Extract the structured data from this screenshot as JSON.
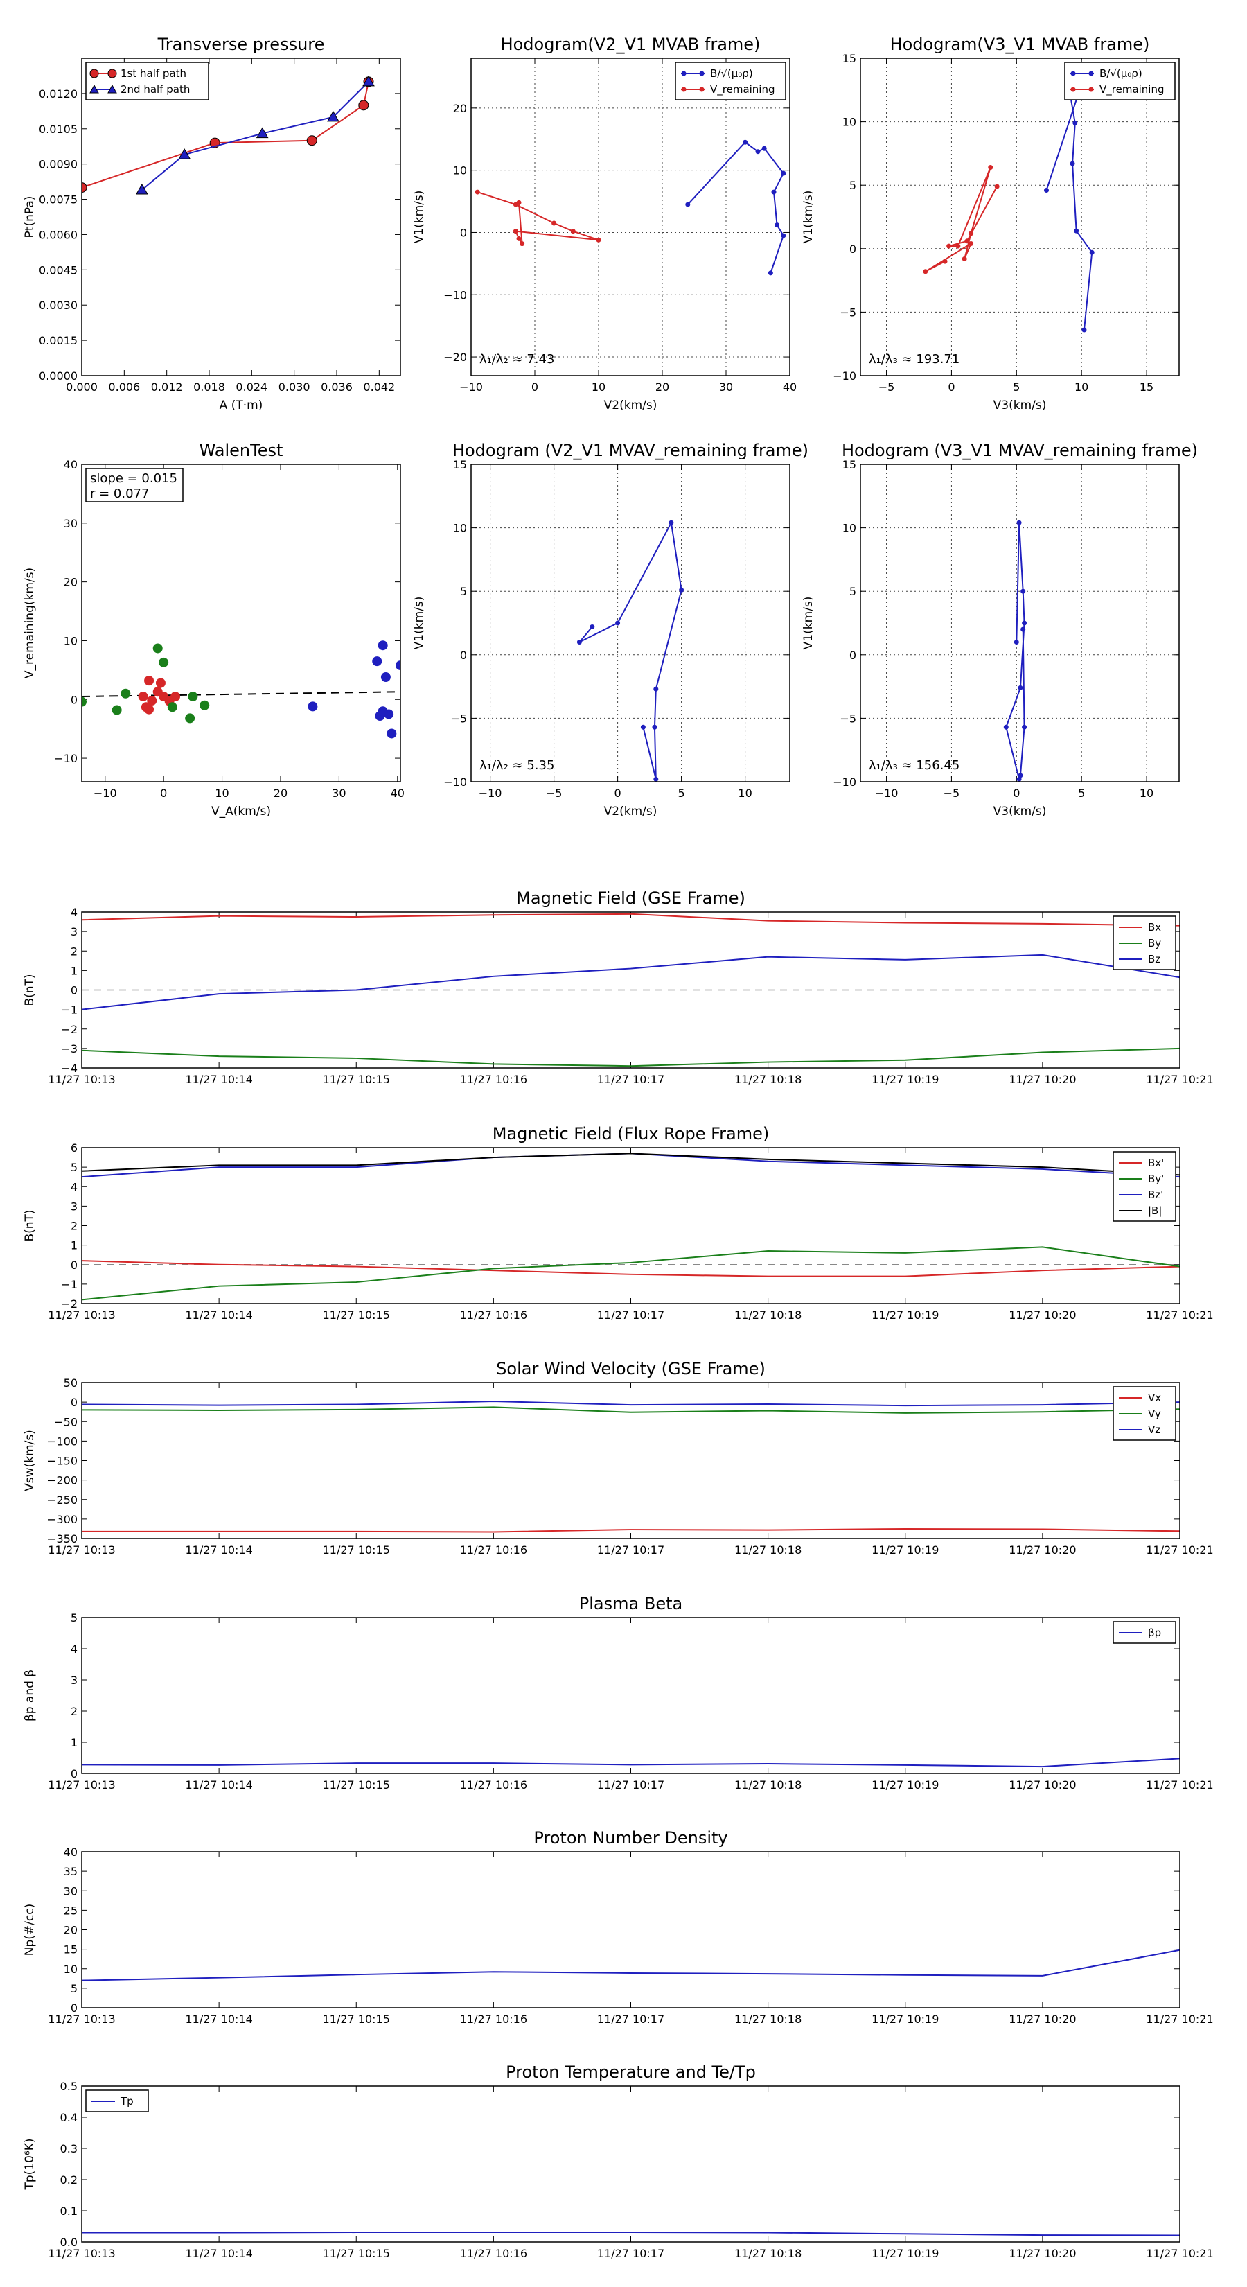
{
  "chart_data": [
    {
      "id": "tp",
      "type": "line",
      "title": "Transverse pressure",
      "xlabel": "A (T·m)",
      "ylabel": "Pt(nPa)",
      "xlim": [
        0,
        0.045
      ],
      "ylim": [
        0,
        0.0135
      ],
      "xticks": [
        0,
        0.006,
        0.012,
        0.018,
        0.024,
        0.03,
        0.036,
        0.042
      ],
      "xtick_labels": [
        "0.000",
        "0.006",
        "0.012",
        "0.018",
        "0.024",
        "0.030",
        "0.036",
        "0.042"
      ],
      "yticks": [
        0,
        0.0015,
        0.003,
        0.0045,
        0.006,
        0.0075,
        0.009,
        0.0105,
        0.012
      ],
      "ytick_labels": [
        "0.0000",
        "0.0015",
        "0.0030",
        "0.0045",
        "0.0060",
        "0.0075",
        "0.0090",
        "0.0105",
        "0.0120"
      ],
      "grid": false,
      "legend": "top-left",
      "series": [
        {
          "name": "1st half path",
          "color": "#d62728",
          "marker": "circle",
          "x": [
            0.0,
            0.0188,
            0.0325,
            0.0398,
            0.0405
          ],
          "y": [
            0.008,
            0.0099,
            0.01,
            0.0115,
            0.0125
          ]
        },
        {
          "name": "2nd half path",
          "color": "#1f1fbf",
          "marker": "triangle",
          "x": [
            0.0085,
            0.0145,
            0.0255,
            0.0355,
            0.0405
          ],
          "y": [
            0.0079,
            0.0094,
            0.0103,
            0.011,
            0.0125
          ]
        }
      ]
    },
    {
      "id": "h1",
      "type": "line",
      "title": "Hodogram(V2_V1 MVAB frame)",
      "xlabel": "V2(km/s)",
      "ylabel": "V1(km/s)",
      "xlim": [
        -10,
        40
      ],
      "ylim": [
        -23,
        28
      ],
      "xticks": [
        -10,
        0,
        10,
        20,
        30,
        40
      ],
      "xtick_labels": [
        "−10",
        "0",
        "10",
        "20",
        "30",
        "40"
      ],
      "yticks": [
        -20,
        -10,
        0,
        10,
        20
      ],
      "ytick_labels": [
        "−20",
        "−10",
        "0",
        "10",
        "20"
      ],
      "grid": true,
      "legend": "top-right",
      "annotation": "λ₁/λ₂ ≈ 7.43",
      "series": [
        {
          "name": "B/√(μ₀ρ)",
          "color": "#1f1fbf",
          "x": [
            24,
            33,
            35,
            36,
            39,
            37.5,
            38,
            39,
            37
          ],
          "y": [
            4.5,
            14.5,
            13,
            13.5,
            9.5,
            6.5,
            1.2,
            -0.5,
            -6.5
          ]
        },
        {
          "name": "V_remaining",
          "color": "#d62728",
          "x": [
            -9,
            -3,
            3,
            6,
            10,
            -3,
            -2.5,
            -2,
            -2.5
          ],
          "y": [
            6.5,
            4.5,
            1.5,
            0.2,
            -1.2,
            0.2,
            -1,
            -1.8,
            4.8
          ]
        }
      ]
    },
    {
      "id": "h2",
      "type": "line",
      "title": "Hodogram(V3_V1 MVAB frame)",
      "xlabel": "V3(km/s)",
      "ylabel": "V1(km/s)",
      "xlim": [
        -7,
        17.5
      ],
      "ylim": [
        -10,
        15
      ],
      "xticks": [
        -5,
        0,
        5,
        10,
        15
      ],
      "xtick_labels": [
        "−5",
        "0",
        "5",
        "10",
        "15"
      ],
      "yticks": [
        -10,
        -5,
        0,
        5,
        10,
        15
      ],
      "ytick_labels": [
        "−10",
        "−5",
        "0",
        "5",
        "10",
        "15"
      ],
      "grid": true,
      "legend": "top-right",
      "annotation": "λ₁/λ₃ ≈ 193.71",
      "series": [
        {
          "name": "B/√(μ₀ρ)",
          "color": "#1f1fbf",
          "x": [
            7.3,
            10.5,
            9.0,
            9.0,
            9.5,
            9.3,
            9.6,
            10.8,
            10.2
          ],
          "y": [
            4.6,
            14.5,
            13.7,
            12.9,
            9.9,
            6.7,
            1.4,
            -0.3,
            -6.4
          ]
        },
        {
          "name": "V_remaining",
          "color": "#d62728",
          "x": [
            3.5,
            1.2,
            -0.2,
            0.5,
            3.0,
            1.5,
            1.0,
            1.5,
            -2.0,
            -0.5
          ],
          "y": [
            4.9,
            0.6,
            0.2,
            0.2,
            6.4,
            1.2,
            -0.8,
            0.4,
            -1.8,
            -1.0
          ]
        }
      ]
    },
    {
      "id": "walen",
      "type": "scatter",
      "title": "WalenTest",
      "xlabel": "V_A(km/s)",
      "ylabel": "V_remaining(km/s)",
      "xlim": [
        -14,
        40.5
      ],
      "ylim": [
        -14,
        40
      ],
      "xticks": [
        -10,
        0,
        10,
        20,
        30,
        40
      ],
      "xtick_labels": [
        "−10",
        "0",
        "10",
        "20",
        "30",
        "40"
      ],
      "yticks": [
        -10,
        0,
        10,
        20,
        30,
        40
      ],
      "ytick_labels": [
        "−10",
        "0",
        "10",
        "20",
        "30",
        "40"
      ],
      "grid": false,
      "annotation_lines": [
        "slope = 0.015",
        "r = 0.077"
      ],
      "fit_line": {
        "x": [
          -14,
          40.5
        ],
        "y": [
          0.5,
          1.3
        ]
      },
      "series": [
        {
          "color": "#d62728",
          "x": [
            -3.5,
            -2.5,
            -2,
            -1,
            -0.5,
            0,
            1,
            2,
            -2.5,
            -3
          ],
          "y": [
            0.5,
            3.2,
            -0.2,
            1.3,
            2.8,
            0.5,
            -0.3,
            0.5,
            -1.7,
            -1.3
          ]
        },
        {
          "color": "#1a7f1a",
          "x": [
            -1,
            0,
            5,
            7,
            4.5,
            -6.5,
            -8,
            1.5,
            -14
          ],
          "y": [
            8.7,
            6.3,
            0.5,
            -1,
            -3.2,
            1,
            -1.8,
            -1.3,
            -0.4
          ]
        },
        {
          "color": "#1f1fbf",
          "x": [
            25.5,
            36.5,
            37.5,
            38,
            38.5,
            39,
            40.5,
            37,
            37.5
          ],
          "y": [
            -1.2,
            6.5,
            9.2,
            3.8,
            -2.5,
            -5.8,
            5.8,
            -2.8,
            -2.0
          ]
        }
      ]
    },
    {
      "id": "h3",
      "type": "line",
      "title": "Hodogram (V2_V1 MVAV_remaining frame)",
      "xlabel": "V2(km/s)",
      "ylabel": "V1(km/s)",
      "xlim": [
        -11.5,
        13.5
      ],
      "ylim": [
        -10,
        15
      ],
      "xticks": [
        -10,
        -5,
        0,
        5,
        10
      ],
      "xtick_labels": [
        "−10",
        "−5",
        "0",
        "5",
        "10"
      ],
      "yticks": [
        -10,
        -5,
        0,
        5,
        10,
        15
      ],
      "ytick_labels": [
        "−10",
        "−5",
        "0",
        "5",
        "10",
        "15"
      ],
      "grid": true,
      "annotation": "λ₁/λ₂ ≈ 5.35",
      "series": [
        {
          "color": "#1f1fbf",
          "x": [
            -2,
            -3,
            0,
            4.2,
            5,
            3,
            2.9,
            3,
            2
          ],
          "y": [
            2.2,
            1.0,
            2.5,
            10.4,
            5.1,
            -2.7,
            -5.7,
            -9.8,
            -5.7
          ]
        }
      ]
    },
    {
      "id": "h4",
      "type": "line",
      "title": "Hodogram (V3_V1 MVAV_remaining frame)",
      "xlabel": "V3(km/s)",
      "ylabel": "V1(km/s)",
      "xlim": [
        -12,
        12.5
      ],
      "ylim": [
        -10,
        15
      ],
      "xticks": [
        -10,
        -5,
        0,
        5,
        10
      ],
      "xtick_labels": [
        "−10",
        "−5",
        "0",
        "5",
        "10"
      ],
      "yticks": [
        -10,
        -5,
        0,
        5,
        10,
        15
      ],
      "ytick_labels": [
        "−10",
        "−5",
        "0",
        "5",
        "10",
        "15"
      ],
      "grid": true,
      "annotation": "λ₁/λ₃ ≈ 156.45",
      "series": [
        {
          "color": "#1f1fbf",
          "x": [
            0,
            0.2,
            0.5,
            0.6,
            0.3,
            -0.8,
            0.2,
            0.3,
            0.6,
            0.5
          ],
          "y": [
            1.0,
            10.4,
            5.0,
            2.5,
            -2.6,
            -5.7,
            -9.8,
            -9.5,
            -5.7,
            2.0
          ]
        }
      ]
    },
    {
      "id": "mag_gse",
      "type": "line",
      "title": "Magnetic Field (GSE Frame)",
      "ylabel": "B(nT)",
      "xlim": [
        0,
        8
      ],
      "ylim": [
        -4,
        4
      ],
      "x_categories": [
        "11/27 10:13",
        "11/27 10:14",
        "11/27 10:15",
        "11/27 10:16",
        "11/27 10:17",
        "11/27 10:18",
        "11/27 10:19",
        "11/27 10:20",
        "11/27 10:21"
      ],
      "yticks": [
        -4,
        -3,
        -2,
        -1,
        0,
        1,
        2,
        3,
        4
      ],
      "ytick_labels": [
        "−4",
        "−3",
        "−2",
        "−1",
        "0",
        "1",
        "2",
        "3",
        "4"
      ],
      "zero_line": true,
      "legend": "top-right",
      "series": [
        {
          "name": "Bx",
          "color": "#d62728",
          "x": [
            0,
            1,
            2,
            3,
            4,
            5,
            6,
            7,
            8
          ],
          "y": [
            3.6,
            3.8,
            3.75,
            3.85,
            3.9,
            3.55,
            3.45,
            3.4,
            3.3
          ]
        },
        {
          "name": "By",
          "color": "#1a7f1a",
          "x": [
            0,
            1,
            2,
            3,
            4,
            5,
            6,
            7,
            8
          ],
          "y": [
            -3.1,
            -3.4,
            -3.5,
            -3.8,
            -3.9,
            -3.7,
            -3.6,
            -3.2,
            -3.0
          ]
        },
        {
          "name": "Bz",
          "color": "#1f1fbf",
          "x": [
            0,
            1,
            2,
            3,
            4,
            5,
            6,
            7,
            8
          ],
          "y": [
            -1.0,
            -0.2,
            0.0,
            0.7,
            1.1,
            1.7,
            1.55,
            1.8,
            0.65
          ]
        }
      ]
    },
    {
      "id": "mag_fr",
      "type": "line",
      "title": "Magnetic Field (Flux Rope Frame)",
      "ylabel": "B(nT)",
      "xlim": [
        0,
        8
      ],
      "ylim": [
        -2,
        6
      ],
      "x_categories": [
        "11/27 10:13",
        "11/27 10:14",
        "11/27 10:15",
        "11/27 10:16",
        "11/27 10:17",
        "11/27 10:18",
        "11/27 10:19",
        "11/27 10:20",
        "11/27 10:21"
      ],
      "yticks": [
        -2,
        -1,
        0,
        1,
        2,
        3,
        4,
        5,
        6
      ],
      "ytick_labels": [
        "−2",
        "−1",
        "0",
        "1",
        "2",
        "3",
        "4",
        "5",
        "6"
      ],
      "zero_line": true,
      "legend": "top-right",
      "series": [
        {
          "name": "Bx'",
          "color": "#d62728",
          "x": [
            0,
            1,
            2,
            3,
            4,
            5,
            6,
            7,
            8
          ],
          "y": [
            0.2,
            0.0,
            -0.1,
            -0.3,
            -0.5,
            -0.6,
            -0.6,
            -0.3,
            -0.1
          ]
        },
        {
          "name": "By'",
          "color": "#1a7f1a",
          "x": [
            0,
            1,
            2,
            3,
            4,
            5,
            6,
            7,
            8
          ],
          "y": [
            -1.8,
            -1.1,
            -0.9,
            -0.2,
            0.1,
            0.7,
            0.6,
            0.9,
            -0.1
          ]
        },
        {
          "name": "Bz'",
          "color": "#1f1fbf",
          "x": [
            0,
            1,
            2,
            3,
            4,
            5,
            6,
            7,
            8
          ],
          "y": [
            4.5,
            5.0,
            5.0,
            5.5,
            5.7,
            5.3,
            5.1,
            4.9,
            4.5
          ]
        },
        {
          "name": "|B|",
          "color": "#000000",
          "x": [
            0,
            1,
            2,
            3,
            4,
            5,
            6,
            7,
            8
          ],
          "y": [
            4.8,
            5.1,
            5.1,
            5.5,
            5.7,
            5.4,
            5.2,
            5.0,
            4.6
          ]
        }
      ]
    },
    {
      "id": "vsw",
      "type": "line",
      "title": "Solar Wind Velocity (GSE Frame)",
      "ylabel": "Vsw(km/s)",
      "xlim": [
        0,
        8
      ],
      "ylim": [
        -350,
        50
      ],
      "x_categories": [
        "11/27 10:13",
        "11/27 10:14",
        "11/27 10:15",
        "11/27 10:16",
        "11/27 10:17",
        "11/27 10:18",
        "11/27 10:19",
        "11/27 10:20",
        "11/27 10:21"
      ],
      "yticks": [
        -350,
        -300,
        -250,
        -200,
        -150,
        -100,
        -50,
        0,
        50
      ],
      "ytick_labels": [
        "−350",
        "−300",
        "−250",
        "−200",
        "−150",
        "−100",
        "−50",
        "0",
        "50"
      ],
      "legend": "top-right",
      "series": [
        {
          "name": "Vx",
          "color": "#d62728",
          "x": [
            0,
            1,
            2,
            3,
            4,
            5,
            6,
            7,
            8
          ],
          "y": [
            -332,
            -332,
            -332,
            -333,
            -327,
            -328,
            -325,
            -326,
            -331
          ]
        },
        {
          "name": "Vy",
          "color": "#1a7f1a",
          "x": [
            0,
            1,
            2,
            3,
            4,
            5,
            6,
            7,
            8
          ],
          "y": [
            -20,
            -21,
            -19,
            -13,
            -26,
            -22,
            -28,
            -25,
            -18
          ]
        },
        {
          "name": "Vz",
          "color": "#1f1fbf",
          "x": [
            0,
            1,
            2,
            3,
            4,
            5,
            6,
            7,
            8
          ],
          "y": [
            -6,
            -8,
            -6,
            2,
            -7,
            -5,
            -9,
            -7,
            0
          ]
        }
      ]
    },
    {
      "id": "beta",
      "type": "line",
      "title": "Plasma Beta",
      "ylabel": "βp and β",
      "xlim": [
        0,
        8
      ],
      "ylim": [
        0,
        5
      ],
      "x_categories": [
        "11/27 10:13",
        "11/27 10:14",
        "11/27 10:15",
        "11/27 10:16",
        "11/27 10:17",
        "11/27 10:18",
        "11/27 10:19",
        "11/27 10:20",
        "11/27 10:21"
      ],
      "yticks": [
        0,
        1,
        2,
        3,
        4,
        5
      ],
      "ytick_labels": [
        "0",
        "1",
        "2",
        "3",
        "4",
        "5"
      ],
      "legend": "top-right",
      "series": [
        {
          "name": "βp",
          "color": "#1f1fbf",
          "x": [
            0,
            1,
            2,
            3,
            4,
            5,
            6,
            7,
            8
          ],
          "y": [
            0.28,
            0.27,
            0.33,
            0.33,
            0.28,
            0.31,
            0.27,
            0.22,
            0.48
          ]
        }
      ]
    },
    {
      "id": "np",
      "type": "line",
      "title": "Proton Number Density",
      "ylabel": "Np(#/cc)",
      "xlim": [
        0,
        8
      ],
      "ylim": [
        0,
        40
      ],
      "x_categories": [
        "11/27 10:13",
        "11/27 10:14",
        "11/27 10:15",
        "11/27 10:16",
        "11/27 10:17",
        "11/27 10:18",
        "11/27 10:19",
        "11/27 10:20",
        "11/27 10:21"
      ],
      "yticks": [
        0,
        5,
        10,
        15,
        20,
        25,
        30,
        35,
        40
      ],
      "ytick_labels": [
        "0",
        "5",
        "10",
        "15",
        "20",
        "25",
        "30",
        "35",
        "40"
      ],
      "series": [
        {
          "color": "#1f1fbf",
          "x": [
            0,
            1,
            2,
            3,
            4,
            5,
            6,
            7,
            8
          ],
          "y": [
            7.0,
            7.7,
            8.5,
            9.2,
            8.9,
            8.7,
            8.4,
            8.2,
            14.8
          ]
        }
      ]
    },
    {
      "id": "tp2",
      "type": "line",
      "title": "Proton Temperature and Te/Tp",
      "ylabel": "Tp(10⁶K)",
      "xlim": [
        0,
        8
      ],
      "ylim": [
        0,
        0.5
      ],
      "x_categories": [
        "11/27 10:13",
        "11/27 10:14",
        "11/27 10:15",
        "11/27 10:16",
        "11/27 10:17",
        "11/27 10:18",
        "11/27 10:19",
        "11/27 10:20",
        "11/27 10:21"
      ],
      "yticks": [
        0,
        0.1,
        0.2,
        0.3,
        0.4,
        0.5
      ],
      "ytick_labels": [
        "0.0",
        "0.1",
        "0.2",
        "0.3",
        "0.4",
        "0.5"
      ],
      "legend": "top-left",
      "series": [
        {
          "name": "Tp",
          "color": "#1f1fbf",
          "x": [
            0,
            1,
            2,
            3,
            4,
            5,
            6,
            7,
            8
          ],
          "y": [
            0.03,
            0.03,
            0.031,
            0.031,
            0.031,
            0.03,
            0.026,
            0.022,
            0.021
          ]
        }
      ]
    }
  ]
}
